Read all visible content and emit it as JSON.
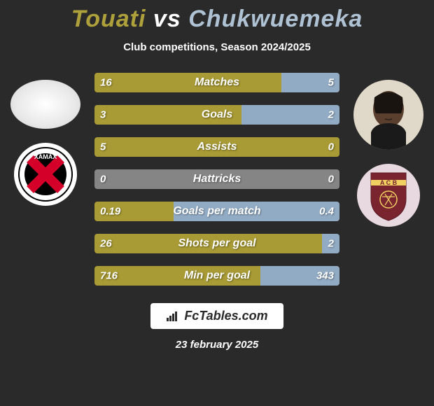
{
  "title": {
    "left_name": "Touati",
    "vs": "vs",
    "right_name": "Chukwuemeka",
    "left_color": "#aea13b",
    "right_color": "#aec2d4",
    "vs_color": "#ffffff",
    "fontsize": 34
  },
  "subtitle": "Club competitions, Season 2024/2025",
  "background_color": "#2a2a2a",
  "bar_colors": {
    "left": "#a89a34",
    "right": "#92abc4",
    "neutral": "#858585"
  },
  "bar_style": {
    "height": 28,
    "gap": 18,
    "label_fontsize": 16,
    "value_fontsize": 15,
    "border_radius": 4
  },
  "stats": [
    {
      "label": "Matches",
      "left_value": "16",
      "right_value": "5",
      "left_num": 16,
      "right_num": 5,
      "left_pct": 76.2,
      "right_pct": 23.8,
      "split": true
    },
    {
      "label": "Goals",
      "left_value": "3",
      "right_value": "2",
      "left_num": 3,
      "right_num": 2,
      "left_pct": 60.0,
      "right_pct": 40.0,
      "split": true
    },
    {
      "label": "Assists",
      "left_value": "5",
      "right_value": "0",
      "left_num": 5,
      "right_num": 0,
      "left_pct": 100.0,
      "right_pct": 0.0,
      "split": true
    },
    {
      "label": "Hattricks",
      "left_value": "0",
      "right_value": "0",
      "left_num": 0,
      "right_num": 0,
      "left_pct": 0,
      "right_pct": 0,
      "split": false
    },
    {
      "label": "Goals per match",
      "left_value": "0.19",
      "right_value": "0.4",
      "left_num": 0.19,
      "right_num": 0.4,
      "left_pct": 32.2,
      "right_pct": 67.8,
      "split": true
    },
    {
      "label": "Shots per goal",
      "left_value": "26",
      "right_value": "2",
      "left_num": 26,
      "right_num": 2,
      "left_pct": 92.9,
      "right_pct": 7.1,
      "split": true
    },
    {
      "label": "Min per goal",
      "left_value": "716",
      "right_value": "343",
      "left_num": 716,
      "right_num": 343,
      "left_pct": 67.6,
      "right_pct": 32.4,
      "split": true
    }
  ],
  "players": {
    "left": {
      "avatar_bg": "#ffffff",
      "logo_name": "XAMAX",
      "logo_bg": "#ffffff",
      "logo_inner_bg": "#000000",
      "logo_cross_color": "#d4002a",
      "logo_text_color": "#ffffff"
    },
    "right": {
      "avatar_bg": "#e0d8c8",
      "logo_bg": "#e8d8e0",
      "logo_shield_color": "#7a2430",
      "logo_stripe_color": "#f0d060",
      "logo_text": "ACB"
    }
  },
  "brand": {
    "label": "FcTables.com",
    "bg": "#ffffff",
    "text_color": "#2a2a2a",
    "icon_color": "#2a2a2a"
  },
  "date": "23 february 2025"
}
